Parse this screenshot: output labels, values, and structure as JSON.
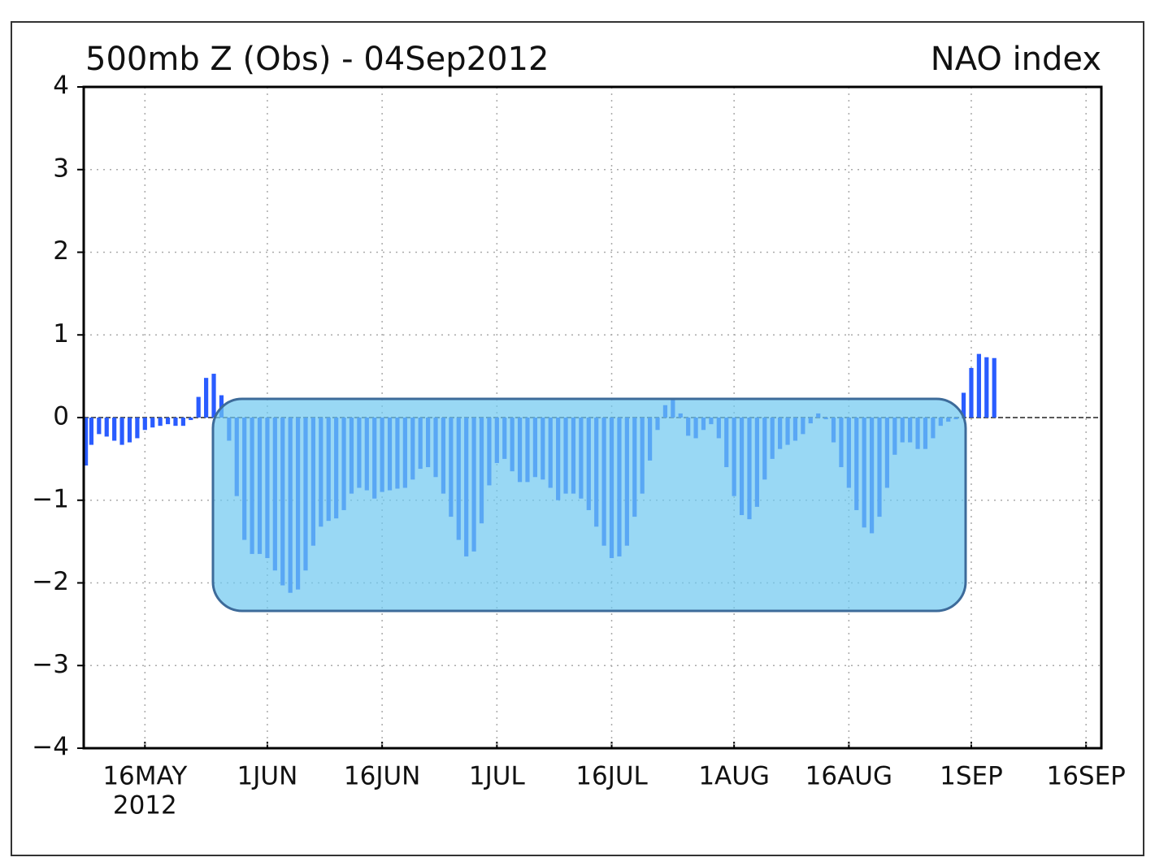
{
  "chart_data": {
    "type": "bar",
    "title": "500mb Z (Obs) - 04Sep2012",
    "subtitle": "NAO index",
    "year_label": "2012",
    "x": [
      "2012-05-08",
      "2012-05-09",
      "2012-05-10",
      "2012-05-11",
      "2012-05-12",
      "2012-05-13",
      "2012-05-14",
      "2012-05-15",
      "2012-05-16",
      "2012-05-17",
      "2012-05-18",
      "2012-05-19",
      "2012-05-20",
      "2012-05-21",
      "2012-05-22",
      "2012-05-23",
      "2012-05-24",
      "2012-05-25",
      "2012-05-26",
      "2012-05-27",
      "2012-05-28",
      "2012-05-29",
      "2012-05-30",
      "2012-05-31",
      "2012-06-01",
      "2012-06-02",
      "2012-06-03",
      "2012-06-04",
      "2012-06-05",
      "2012-06-06",
      "2012-06-07",
      "2012-06-08",
      "2012-06-09",
      "2012-06-10",
      "2012-06-11",
      "2012-06-12",
      "2012-06-13",
      "2012-06-14",
      "2012-06-15",
      "2012-06-16",
      "2012-06-17",
      "2012-06-18",
      "2012-06-19",
      "2012-06-20",
      "2012-06-21",
      "2012-06-22",
      "2012-06-23",
      "2012-06-24",
      "2012-06-25",
      "2012-06-26",
      "2012-06-27",
      "2012-06-28",
      "2012-06-29",
      "2012-06-30",
      "2012-07-01",
      "2012-07-02",
      "2012-07-03",
      "2012-07-04",
      "2012-07-05",
      "2012-07-06",
      "2012-07-07",
      "2012-07-08",
      "2012-07-09",
      "2012-07-10",
      "2012-07-11",
      "2012-07-12",
      "2012-07-13",
      "2012-07-14",
      "2012-07-15",
      "2012-07-16",
      "2012-07-17",
      "2012-07-18",
      "2012-07-19",
      "2012-07-20",
      "2012-07-21",
      "2012-07-22",
      "2012-07-23",
      "2012-07-24",
      "2012-07-25",
      "2012-07-26",
      "2012-07-27",
      "2012-07-28",
      "2012-07-29",
      "2012-07-30",
      "2012-07-31",
      "2012-08-01",
      "2012-08-02",
      "2012-08-03",
      "2012-08-04",
      "2012-08-05",
      "2012-08-06",
      "2012-08-07",
      "2012-08-08",
      "2012-08-09",
      "2012-08-10",
      "2012-08-11",
      "2012-08-12",
      "2012-08-13",
      "2012-08-14",
      "2012-08-15",
      "2012-08-16",
      "2012-08-17",
      "2012-08-18",
      "2012-08-19",
      "2012-08-20",
      "2012-08-21",
      "2012-08-22",
      "2012-08-23",
      "2012-08-24",
      "2012-08-25",
      "2012-08-26",
      "2012-08-27",
      "2012-08-28",
      "2012-08-29",
      "2012-08-30",
      "2012-08-31",
      "2012-09-01",
      "2012-09-02",
      "2012-09-03",
      "2012-09-04"
    ],
    "values": [
      -0.58,
      -0.33,
      -0.2,
      -0.23,
      -0.28,
      -0.33,
      -0.3,
      -0.25,
      -0.15,
      -0.12,
      -0.1,
      -0.08,
      -0.1,
      -0.1,
      -0.03,
      0.25,
      0.48,
      0.53,
      0.27,
      -0.28,
      -0.95,
      -1.48,
      -1.65,
      -1.65,
      -1.7,
      -1.85,
      -2.03,
      -2.12,
      -2.08,
      -1.85,
      -1.55,
      -1.32,
      -1.25,
      -1.22,
      -1.12,
      -0.92,
      -0.85,
      -0.88,
      -0.98,
      -0.9,
      -0.88,
      -0.86,
      -0.85,
      -0.75,
      -0.62,
      -0.6,
      -0.72,
      -0.92,
      -1.2,
      -1.48,
      -1.68,
      -1.62,
      -1.28,
      -0.82,
      -0.55,
      -0.5,
      -0.65,
      -0.78,
      -0.78,
      -0.72,
      -0.75,
      -0.85,
      -1.0,
      -0.92,
      -0.92,
      -0.98,
      -1.12,
      -1.32,
      -1.55,
      -1.7,
      -1.68,
      -1.55,
      -1.2,
      -0.92,
      -0.52,
      -0.15,
      0.15,
      0.22,
      0.05,
      -0.22,
      -0.25,
      -0.15,
      -0.08,
      -0.25,
      -0.6,
      -0.95,
      -1.18,
      -1.23,
      -1.08,
      -0.75,
      -0.5,
      -0.38,
      -0.33,
      -0.28,
      -0.2,
      -0.07,
      0.05,
      -0.02,
      -0.3,
      -0.6,
      -0.85,
      -1.12,
      -1.33,
      -1.4,
      -1.2,
      -0.85,
      -0.45,
      -0.3,
      -0.3,
      -0.38,
      -0.38,
      -0.25,
      -0.1,
      -0.05,
      -0.02,
      0.3,
      0.6,
      0.77,
      0.73,
      0.72
    ],
    "color": "#2a5cff",
    "xlim": [
      "2012-05-08",
      "2012-09-18"
    ],
    "xticks": [
      {
        "value": "2012-05-16",
        "label": "16MAY"
      },
      {
        "value": "2012-06-01",
        "label": "1JUN"
      },
      {
        "value": "2012-06-16",
        "label": "16JUN"
      },
      {
        "value": "2012-07-01",
        "label": "1JUL"
      },
      {
        "value": "2012-07-16",
        "label": "16JUL"
      },
      {
        "value": "2012-08-01",
        "label": "1AUG"
      },
      {
        "value": "2012-08-16",
        "label": "16AUG"
      },
      {
        "value": "2012-09-01",
        "label": "1SEP"
      },
      {
        "value": "2012-09-16",
        "label": "16SEP"
      }
    ],
    "ylim": [
      -4,
      4
    ],
    "yticks": [
      {
        "value": -4,
        "label": "−4"
      },
      {
        "value": -3,
        "label": "−3"
      },
      {
        "value": -2,
        "label": "−2"
      },
      {
        "value": -1,
        "label": "−1"
      },
      0,
      1,
      2,
      3,
      4
    ],
    "grid": true
  }
}
